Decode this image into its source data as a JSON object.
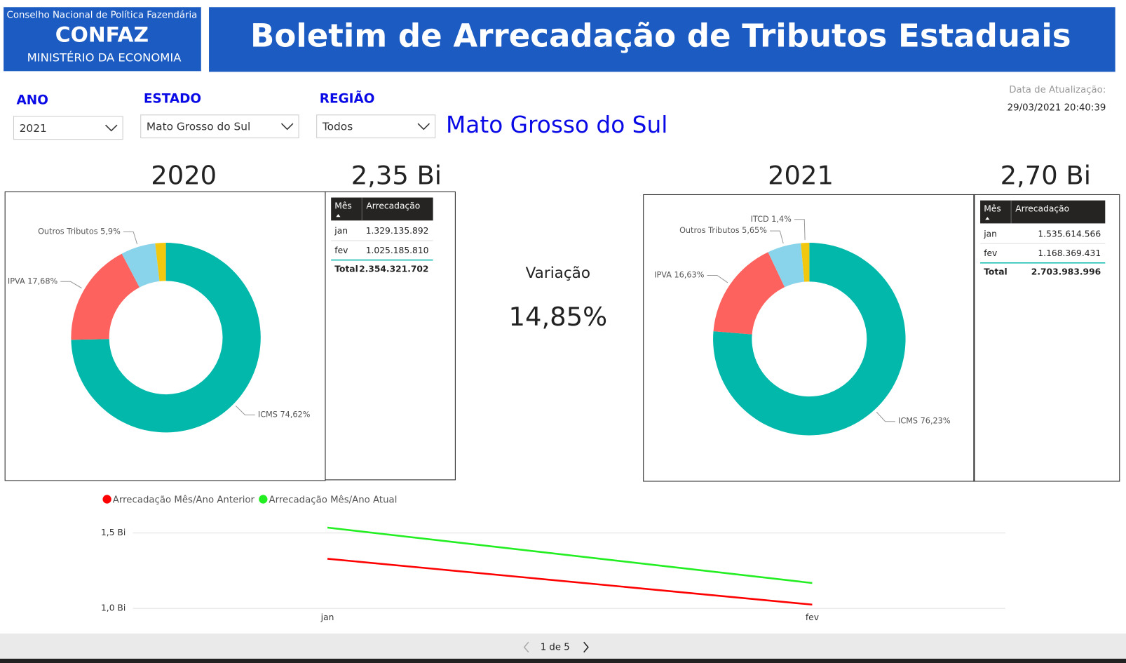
{
  "header": {
    "org": "Conselho Nacional de Política Fazendária",
    "acronym": "CONFAZ",
    "ministry": "MINISTÉRIO DA ECONOMIA",
    "title": "Boletim de Arrecadação de Tributos Estaduais"
  },
  "filters": [
    {
      "label": "ANO",
      "value": "2021"
    },
    {
      "label": "ESTADO",
      "value": "Mato Grosso do Sul"
    },
    {
      "label": "REGIÃO",
      "value": "Todos"
    }
  ],
  "selected_state": "Mato Grosso do Sul",
  "update": {
    "label": "Data de Atualização:",
    "value": "29/03/2021 20:40:39"
  },
  "years": [
    {
      "year": "2020",
      "total": "2,35 Bi",
      "table": {
        "columns": [
          "Mês",
          "Arrecadação"
        ],
        "rows": [
          [
            "jan",
            "1.329.135.892"
          ],
          [
            "fev",
            "1.025.185.810"
          ],
          [
            "Total",
            "2.354.321.702"
          ]
        ]
      }
    },
    {
      "year": "2021",
      "total": "2,70 Bi",
      "table": {
        "columns": [
          "Mês",
          "Arrecadação"
        ],
        "rows": [
          [
            "jan",
            "1.535.614.566"
          ],
          [
            "fev",
            "1.168.369.431"
          ],
          [
            "Total",
            "2.703.983.996"
          ]
        ]
      }
    }
  ],
  "variation": {
    "label": "Variação",
    "value": "14,85%"
  },
  "chart_data": [
    {
      "type": "donut",
      "categories": [
        "ICMS",
        "IPVA",
        "Outros Tributos",
        null
      ],
      "values": [
        74.62,
        17.68,
        5.9,
        1.8
      ],
      "value_labels": [
        "74,62%",
        "17,68%",
        "5,9%",
        null
      ],
      "colors": [
        "#01B8AA",
        "#FD625E",
        "#8AD4EB",
        "#F2C80F"
      ]
    },
    {
      "type": "donut",
      "categories": [
        "ICMS",
        "IPVA",
        "Outros Tributos",
        "ITCD"
      ],
      "values": [
        76.23,
        16.63,
        5.65,
        1.4
      ],
      "value_labels": [
        "76,23%",
        "16,63%",
        "5,65%",
        "1,4%"
      ],
      "colors": [
        "#01B8AA",
        "#FD625E",
        "#8AD4EB",
        "#F2C80F"
      ]
    },
    {
      "type": "line",
      "categories": [
        "jan",
        "fev"
      ],
      "series": [
        {
          "name": "Arrecadação Mês/Ano Anterior",
          "color": "#FF0000",
          "values": [
            1.329135892,
            1.02518581
          ]
        },
        {
          "name": "Arrecadação Mês/Ano Atual",
          "color": "#22EE22",
          "values": [
            1.535614566,
            1.168369431
          ]
        }
      ],
      "ylim": [
        1,
        1.55
      ],
      "yticks": [
        {
          "value": 1,
          "label": "1,0 Bi"
        },
        {
          "value": 1.5,
          "label": "1,5 Bi"
        }
      ],
      "grid": true
    }
  ],
  "pager": "1 de 5"
}
